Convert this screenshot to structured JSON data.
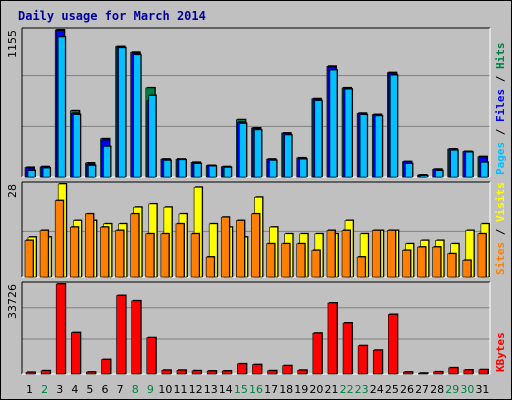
{
  "title": "Daily usage for March 2014",
  "colors": {
    "pages": "#00c0ff",
    "files": "#0000ff",
    "hits": "#008040",
    "visits": "#ffff00",
    "sites": "#ff8000",
    "kbytes": "#ff0000",
    "weekday_text": "#000000",
    "weekend_text": "#008040"
  },
  "chart_data": [
    {
      "type": "bar",
      "panel": "hits-files-pages",
      "title": "Daily usage for March 2014",
      "y_max_label": "1155",
      "ylim": [
        0,
        1155
      ],
      "grid": true,
      "right_labels": [
        {
          "text": "Pages",
          "color": "#00c0ff"
        },
        {
          "text": "Files",
          "color": "#0000ff"
        },
        {
          "text": "Hits",
          "color": "#008040"
        }
      ],
      "categories": [
        "1",
        "2",
        "3",
        "4",
        "5",
        "6",
        "7",
        "8",
        "9",
        "10",
        "11",
        "12",
        "13",
        "14",
        "15",
        "16",
        "17",
        "18",
        "19",
        "20",
        "21",
        "22",
        "23",
        "24",
        "25",
        "26",
        "27",
        "28",
        "29",
        "30",
        "31"
      ],
      "series": [
        {
          "name": "Hits",
          "values": [
            75,
            80,
            1155,
            520,
            110,
            300,
            1025,
            980,
            700,
            140,
            140,
            115,
            90,
            80,
            450,
            385,
            140,
            345,
            150,
            615,
            870,
            700,
            500,
            490,
            820,
            120,
            15,
            60,
            220,
            200,
            160
          ]
        },
        {
          "name": "Files",
          "values": [
            70,
            80,
            1150,
            500,
            100,
            290,
            1020,
            970,
            600,
            135,
            135,
            110,
            90,
            80,
            430,
            380,
            135,
            340,
            145,
            610,
            865,
            695,
            500,
            490,
            815,
            120,
            15,
            60,
            220,
            200,
            155
          ]
        },
        {
          "name": "Pages",
          "values": [
            50,
            70,
            1100,
            490,
            90,
            240,
            1015,
            960,
            640,
            130,
            135,
            105,
            85,
            75,
            420,
            370,
            130,
            330,
            140,
            600,
            840,
            690,
            490,
            480,
            800,
            105,
            10,
            50,
            210,
            195,
            115
          ]
        }
      ]
    },
    {
      "type": "bar",
      "panel": "visits-sites",
      "y_max_label": "28",
      "ylim": [
        0,
        28
      ],
      "grid": true,
      "right_labels": [
        {
          "text": "Sites",
          "color": "#ff8000"
        },
        {
          "text": "Visits",
          "color": "#ffff00"
        }
      ],
      "categories": [
        "1",
        "2",
        "3",
        "4",
        "5",
        "6",
        "7",
        "8",
        "9",
        "10",
        "11",
        "12",
        "13",
        "14",
        "15",
        "16",
        "17",
        "18",
        "19",
        "20",
        "21",
        "22",
        "23",
        "24",
        "25",
        "26",
        "27",
        "28",
        "29",
        "30",
        "31"
      ],
      "series": [
        {
          "name": "Visits",
          "values": [
            12,
            12,
            28,
            17,
            17,
            16,
            16,
            21,
            22,
            21,
            19,
            27,
            16,
            15,
            12,
            24,
            15,
            13,
            13,
            13,
            13,
            17,
            13,
            14,
            14,
            10,
            11,
            11,
            10,
            14,
            16
          ]
        },
        {
          "name": "Sites",
          "values": [
            11,
            14,
            23,
            15,
            19,
            15,
            14,
            19,
            13,
            13,
            16,
            13,
            6,
            18,
            17,
            19,
            10,
            10,
            10,
            8,
            14,
            14,
            6,
            14,
            14,
            8,
            9,
            9,
            7,
            5,
            13
          ]
        }
      ]
    },
    {
      "type": "bar",
      "panel": "kbytes",
      "y_max_label": "33726",
      "ylim": [
        0,
        33726
      ],
      "grid": true,
      "right_labels": [
        {
          "text": "KBytes",
          "color": "#ff0000"
        }
      ],
      "categories": [
        "1",
        "2",
        "3",
        "4",
        "5",
        "6",
        "7",
        "8",
        "9",
        "10",
        "11",
        "12",
        "13",
        "14",
        "15",
        "16",
        "17",
        "18",
        "19",
        "20",
        "21",
        "22",
        "23",
        "24",
        "25",
        "26",
        "27",
        "28",
        "29",
        "30",
        "31"
      ],
      "series": [
        {
          "name": "KBytes",
          "values": [
            600,
            1200,
            33726,
            15500,
            700,
            5400,
            29400,
            27400,
            13600,
            1400,
            1400,
            1200,
            1100,
            1100,
            3800,
            3500,
            1200,
            3100,
            1400,
            15300,
            26600,
            19100,
            10600,
            8900,
            22300,
            700,
            300,
            800,
            2300,
            1500,
            1600
          ]
        }
      ]
    }
  ],
  "x_labels": [
    {
      "text": "1",
      "weekend": false
    },
    {
      "text": "2",
      "weekend": true
    },
    {
      "text": "3",
      "weekend": false
    },
    {
      "text": "4",
      "weekend": false
    },
    {
      "text": "5",
      "weekend": false
    },
    {
      "text": "6",
      "weekend": false
    },
    {
      "text": "7",
      "weekend": false
    },
    {
      "text": "8",
      "weekend": true
    },
    {
      "text": "9",
      "weekend": true
    },
    {
      "text": "10",
      "weekend": false
    },
    {
      "text": "11",
      "weekend": false
    },
    {
      "text": "12",
      "weekend": false
    },
    {
      "text": "13",
      "weekend": false
    },
    {
      "text": "14",
      "weekend": false
    },
    {
      "text": "15",
      "weekend": true
    },
    {
      "text": "16",
      "weekend": true
    },
    {
      "text": "17",
      "weekend": false
    },
    {
      "text": "18",
      "weekend": false
    },
    {
      "text": "19",
      "weekend": false
    },
    {
      "text": "20",
      "weekend": false
    },
    {
      "text": "21",
      "weekend": false
    },
    {
      "text": "22",
      "weekend": true
    },
    {
      "text": "23",
      "weekend": true
    },
    {
      "text": "24",
      "weekend": false
    },
    {
      "text": "25",
      "weekend": false
    },
    {
      "text": "26",
      "weekend": false
    },
    {
      "text": "27",
      "weekend": false
    },
    {
      "text": "28",
      "weekend": false
    },
    {
      "text": "29",
      "weekend": true
    },
    {
      "text": "30",
      "weekend": true
    },
    {
      "text": "31",
      "weekend": false
    }
  ]
}
